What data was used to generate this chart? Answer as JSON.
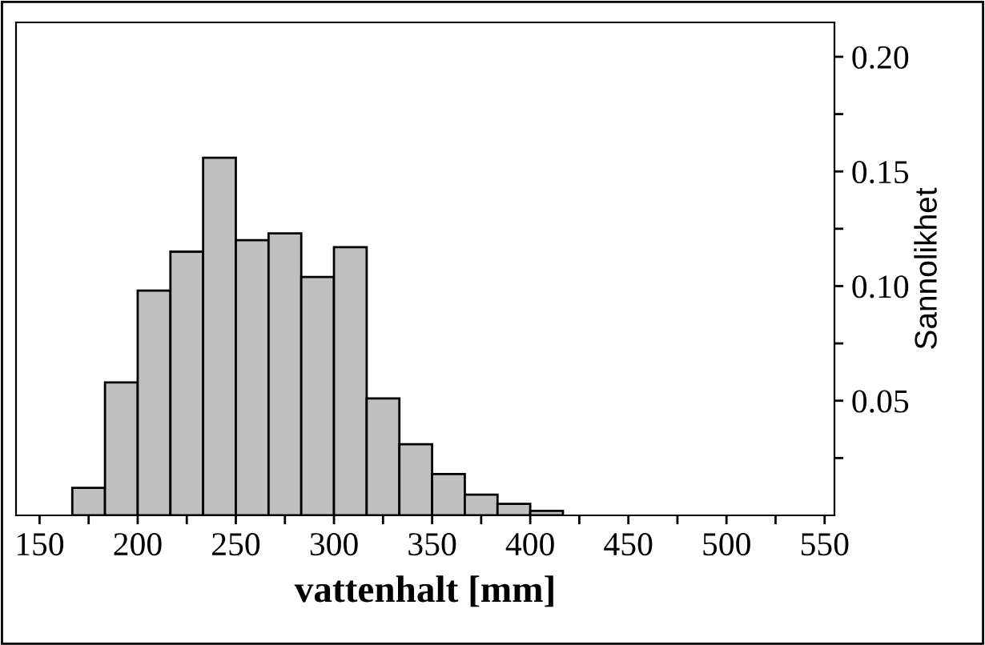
{
  "chart_data": {
    "type": "histogram",
    "xlabel": "vattenhalt [mm]",
    "ylabel": "Sannolikhet",
    "color": "#c0c0c0",
    "bins": [
      166.67,
      183.33,
      200,
      216.67,
      233.33,
      250,
      266.67,
      283.33,
      300,
      316.67,
      333.33,
      350,
      366.67,
      383.33,
      400,
      416.67
    ],
    "values": [
      0.012,
      0.058,
      0.098,
      0.115,
      0.156,
      0.12,
      0.123,
      0.104,
      0.117,
      0.051,
      0.031,
      0.018,
      0.009,
      0.005,
      0.002
    ],
    "xlim": [
      138,
      555
    ],
    "ylim": [
      0,
      0.215
    ],
    "xticks": [
      150,
      {
        "value": 175,
        "label": null
      },
      200,
      {
        "value": 225,
        "label": null
      },
      250,
      {
        "value": 275,
        "label": null
      },
      300,
      {
        "value": 325,
        "label": null
      },
      350,
      {
        "value": 375,
        "label": null
      },
      400,
      {
        "value": 425,
        "label": null
      },
      450,
      {
        "value": 475,
        "label": null
      },
      500,
      {
        "value": 525,
        "label": null
      },
      550
    ],
    "yticks": [
      {
        "value": 0.025,
        "label": null
      },
      {
        "value": 0.05,
        "label": "0.05"
      },
      {
        "value": 0.075,
        "label": null
      },
      {
        "value": 0.1,
        "label": "0.10"
      },
      {
        "value": 0.125,
        "label": null
      },
      {
        "value": 0.15,
        "label": "0.15"
      },
      {
        "value": 0.175,
        "label": null
      },
      {
        "value": 0.2,
        "label": "0.20"
      }
    ],
    "grid": false
  }
}
